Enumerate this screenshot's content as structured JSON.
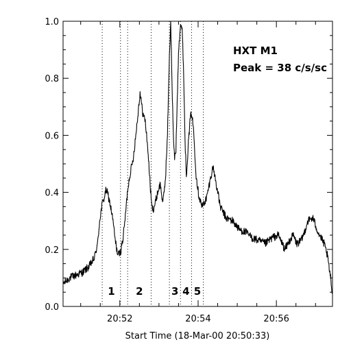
{
  "chart_data": {
    "type": "line",
    "title": "",
    "xlabel": "Start Time (18-Mar-00 20:50:33)",
    "ylabel": "",
    "x_unit": "seconds since 20:50:33",
    "xlim": [
      0,
      413
    ],
    "ylim": [
      0.0,
      1.0
    ],
    "xticks": [
      {
        "value": 87,
        "label": "20:52"
      },
      {
        "value": 207,
        "label": "20:54"
      },
      {
        "value": 327,
        "label": "20:56"
      }
    ],
    "yticks": [
      {
        "value": 0.0,
        "label": "0.0"
      },
      {
        "value": 0.2,
        "label": "0.2"
      },
      {
        "value": 0.4,
        "label": "0.4"
      },
      {
        "value": 0.6,
        "label": "0.6"
      },
      {
        "value": 0.8,
        "label": "0.8"
      },
      {
        "value": 1.0,
        "label": "1.0"
      }
    ],
    "annotations": [
      "HXT M1",
      "Peak = 38 c/s/sc"
    ],
    "intervals": [
      {
        "label": "1",
        "start": 60,
        "end": 88
      },
      {
        "label": "2",
        "start": 99,
        "end": 135
      },
      {
        "label": "3",
        "start": 163,
        "end": 180
      },
      {
        "label": "4",
        "start": 180,
        "end": 197
      },
      {
        "label": "5",
        "start": 197,
        "end": 215
      }
    ],
    "series": [
      {
        "x": [
          0,
          10,
          20,
          30,
          40,
          48,
          53,
          56,
          60,
          63,
          66,
          69,
          72,
          76,
          80,
          84,
          88,
          92,
          96,
          99,
          103,
          107,
          111,
          115,
          118,
          122,
          126,
          130,
          134,
          136,
          138,
          141,
          145,
          149,
          153,
          157,
          160,
          163,
          165,
          167,
          169,
          171,
          173,
          175,
          177,
          180,
          183,
          185,
          187,
          189,
          192,
          195,
          197,
          200,
          202,
          204,
          208,
          213,
          220,
          227,
          230,
          234,
          241,
          250,
          260,
          270,
          280,
          290,
          300,
          310,
          320,
          330,
          340,
          347,
          353,
          358,
          365,
          370,
          375,
          383,
          391,
          400,
          405,
          410,
          413
        ],
        "y": [
          0.08,
          0.1,
          0.11,
          0.12,
          0.14,
          0.17,
          0.22,
          0.3,
          0.36,
          0.38,
          0.41,
          0.39,
          0.36,
          0.31,
          0.23,
          0.18,
          0.19,
          0.24,
          0.33,
          0.41,
          0.47,
          0.51,
          0.59,
          0.68,
          0.75,
          0.68,
          0.65,
          0.55,
          0.41,
          0.35,
          0.34,
          0.36,
          0.4,
          0.43,
          0.36,
          0.45,
          0.6,
          0.88,
          1.0,
          0.78,
          0.6,
          0.52,
          0.55,
          0.72,
          0.9,
          0.99,
          0.96,
          0.8,
          0.58,
          0.46,
          0.57,
          0.66,
          0.68,
          0.62,
          0.54,
          0.46,
          0.39,
          0.35,
          0.38,
          0.46,
          0.49,
          0.44,
          0.35,
          0.31,
          0.3,
          0.27,
          0.26,
          0.24,
          0.23,
          0.22,
          0.24,
          0.25,
          0.2,
          0.23,
          0.25,
          0.22,
          0.23,
          0.26,
          0.3,
          0.31,
          0.26,
          0.22,
          0.18,
          0.1,
          0.04
        ]
      }
    ]
  }
}
